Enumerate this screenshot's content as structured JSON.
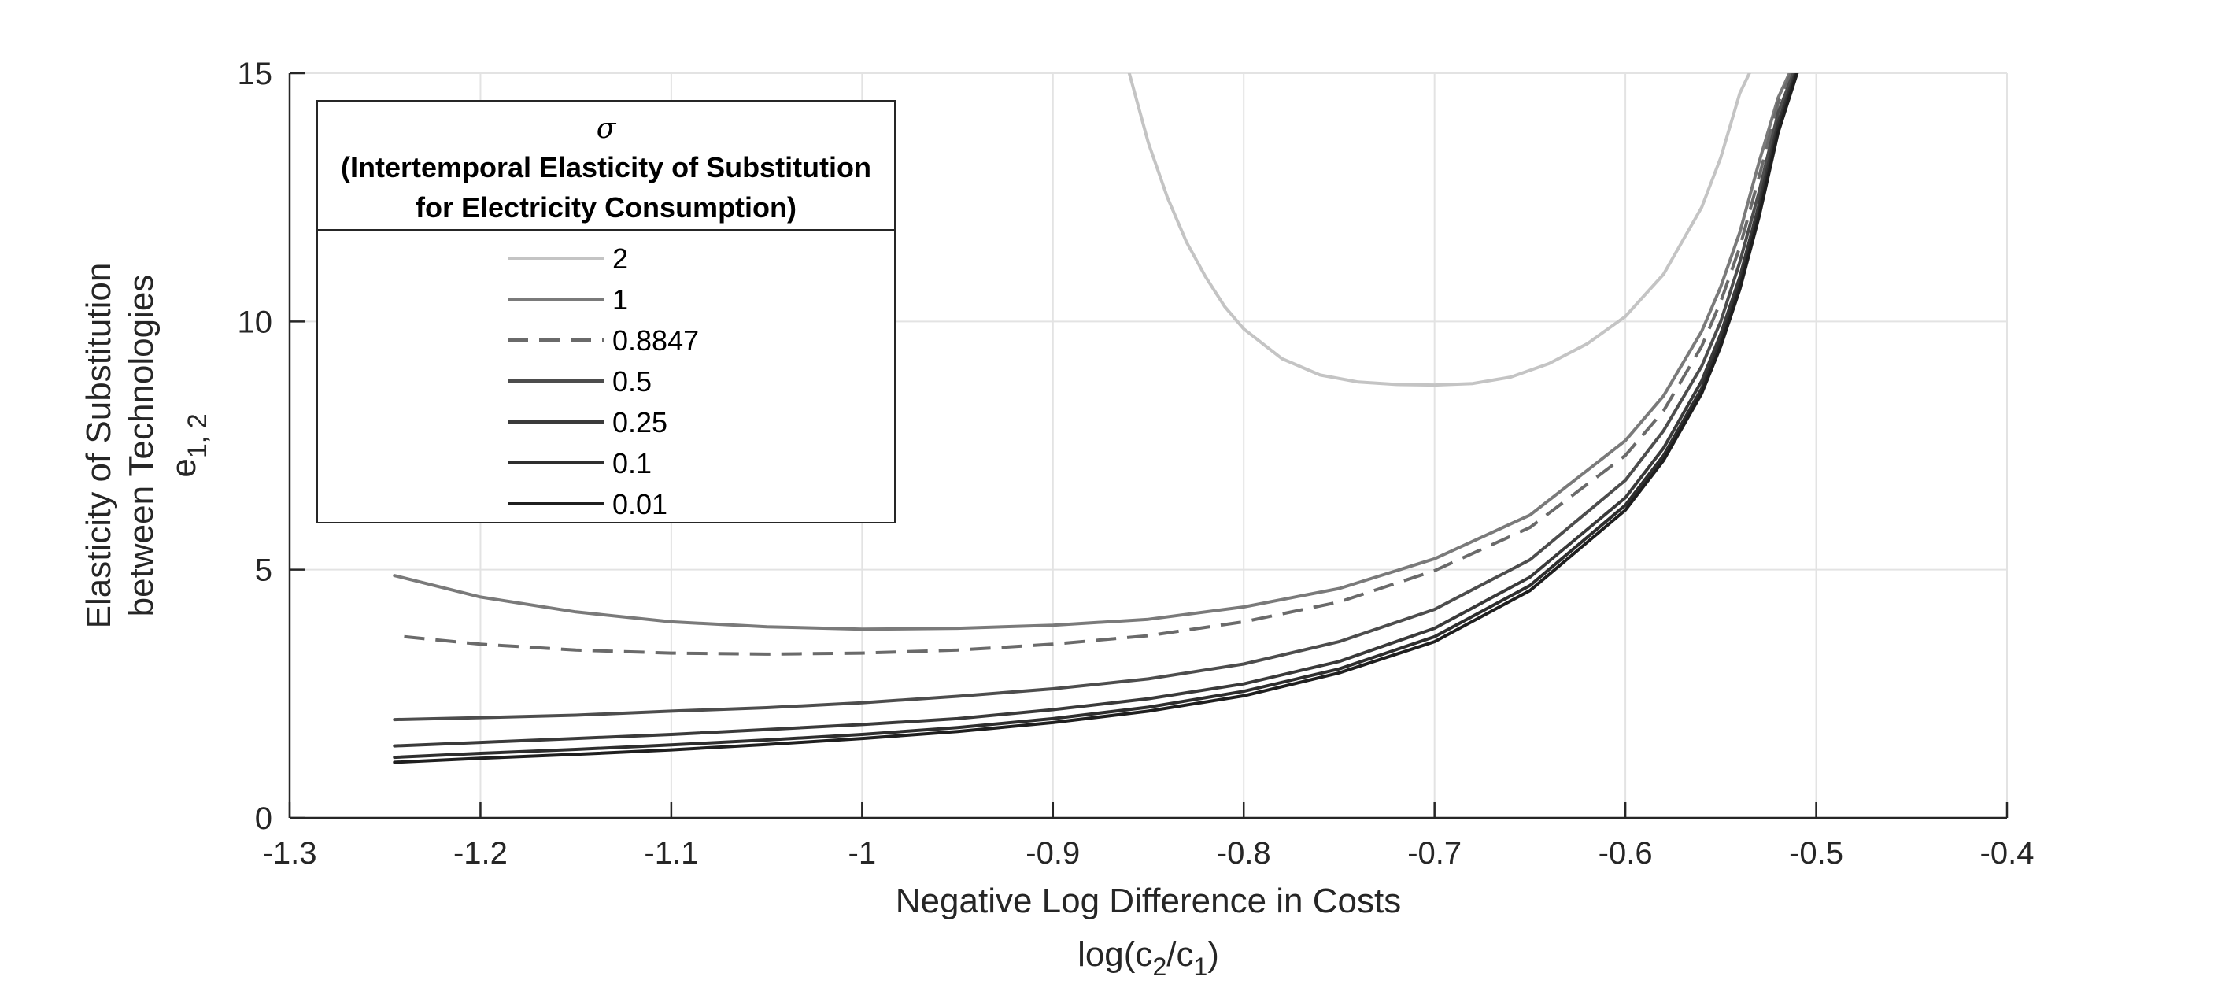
{
  "chart_data": {
    "type": "line",
    "xlabel": "Negative Log Difference in Costs",
    "xlabel_line2": "log(c_2/c_1)",
    "ylabel_line1": "Elasticity of Substitution",
    "ylabel_line2": "between Technologies",
    "ylabel_line3": "e_1, 2",
    "xlim": [
      -1.3,
      -0.4
    ],
    "ylim": [
      0,
      15
    ],
    "grid": true,
    "x_ticks": [
      -1.3,
      -1.2,
      -1.1,
      -1.0,
      -0.9,
      -0.8,
      -0.7,
      -0.6,
      -0.5,
      -0.4
    ],
    "x_tick_labels": [
      "-1.3",
      "-1.2",
      "-1.1",
      "-1",
      "-0.9",
      "-0.8",
      "-0.7",
      "-0.6",
      "-0.5",
      "-0.4"
    ],
    "y_ticks": [
      0,
      5,
      10,
      15
    ],
    "y_tick_labels": [
      "0",
      "5",
      "10",
      "15"
    ],
    "legend": {
      "placement": "top-left",
      "symbol": "σ",
      "title_line1": "(Intertemporal Elasticity of Substitution",
      "title_line2": "for Electricity Consumption)"
    },
    "series": [
      {
        "name": "2",
        "color": "#c4c4c4",
        "dash": "solid",
        "points": [
          [
            -0.86,
            15.0
          ],
          [
            -0.85,
            13.6
          ],
          [
            -0.84,
            12.5
          ],
          [
            -0.83,
            11.6
          ],
          [
            -0.82,
            10.9
          ],
          [
            -0.81,
            10.3
          ],
          [
            -0.8,
            9.85
          ],
          [
            -0.78,
            9.25
          ],
          [
            -0.76,
            8.92
          ],
          [
            -0.74,
            8.78
          ],
          [
            -0.72,
            8.73
          ],
          [
            -0.7,
            8.72
          ],
          [
            -0.68,
            8.75
          ],
          [
            -0.66,
            8.88
          ],
          [
            -0.64,
            9.15
          ],
          [
            -0.62,
            9.55
          ],
          [
            -0.6,
            10.1
          ],
          [
            -0.58,
            10.95
          ],
          [
            -0.56,
            12.3
          ],
          [
            -0.55,
            13.3
          ],
          [
            -0.54,
            14.6
          ],
          [
            -0.535,
            15.0
          ]
        ]
      },
      {
        "name": "1",
        "color": "#7a7a7a",
        "dash": "solid",
        "points": [
          [
            -1.245,
            4.88
          ],
          [
            -1.2,
            4.45
          ],
          [
            -1.15,
            4.15
          ],
          [
            -1.1,
            3.95
          ],
          [
            -1.05,
            3.85
          ],
          [
            -1.0,
            3.8
          ],
          [
            -0.95,
            3.82
          ],
          [
            -0.9,
            3.88
          ],
          [
            -0.85,
            4.0
          ],
          [
            -0.8,
            4.25
          ],
          [
            -0.75,
            4.62
          ],
          [
            -0.7,
            5.22
          ],
          [
            -0.65,
            6.1
          ],
          [
            -0.6,
            7.6
          ],
          [
            -0.58,
            8.5
          ],
          [
            -0.56,
            9.8
          ],
          [
            -0.55,
            10.7
          ],
          [
            -0.54,
            11.8
          ],
          [
            -0.53,
            13.2
          ],
          [
            -0.52,
            14.5
          ],
          [
            -0.514,
            15.0
          ]
        ]
      },
      {
        "name": "0.8847",
        "color": "#6a6a6a",
        "dash": "dashed",
        "points": [
          [
            -1.24,
            3.65
          ],
          [
            -1.2,
            3.5
          ],
          [
            -1.15,
            3.38
          ],
          [
            -1.1,
            3.32
          ],
          [
            -1.05,
            3.3
          ],
          [
            -1.0,
            3.32
          ],
          [
            -0.95,
            3.38
          ],
          [
            -0.9,
            3.5
          ],
          [
            -0.85,
            3.67
          ],
          [
            -0.8,
            3.95
          ],
          [
            -0.75,
            4.35
          ],
          [
            -0.7,
            4.98
          ],
          [
            -0.65,
            5.85
          ],
          [
            -0.6,
            7.3
          ],
          [
            -0.58,
            8.2
          ],
          [
            -0.56,
            9.5
          ],
          [
            -0.55,
            10.4
          ],
          [
            -0.54,
            11.5
          ],
          [
            -0.53,
            12.9
          ],
          [
            -0.52,
            14.4
          ],
          [
            -0.513,
            15.0
          ]
        ]
      },
      {
        "name": "0.5",
        "color": "#4d4d4d",
        "dash": "solid",
        "points": [
          [
            -1.245,
            1.98
          ],
          [
            -1.2,
            2.02
          ],
          [
            -1.15,
            2.07
          ],
          [
            -1.1,
            2.15
          ],
          [
            -1.05,
            2.22
          ],
          [
            -1.0,
            2.32
          ],
          [
            -0.95,
            2.45
          ],
          [
            -0.9,
            2.6
          ],
          [
            -0.85,
            2.8
          ],
          [
            -0.8,
            3.1
          ],
          [
            -0.75,
            3.55
          ],
          [
            -0.7,
            4.2
          ],
          [
            -0.65,
            5.2
          ],
          [
            -0.6,
            6.8
          ],
          [
            -0.58,
            7.8
          ],
          [
            -0.56,
            9.1
          ],
          [
            -0.55,
            10.0
          ],
          [
            -0.54,
            11.2
          ],
          [
            -0.53,
            12.6
          ],
          [
            -0.52,
            14.2
          ],
          [
            -0.512,
            15.0
          ]
        ]
      },
      {
        "name": "0.25",
        "color": "#3a3a3a",
        "dash": "solid",
        "points": [
          [
            -1.245,
            1.45
          ],
          [
            -1.2,
            1.52
          ],
          [
            -1.15,
            1.6
          ],
          [
            -1.1,
            1.68
          ],
          [
            -1.05,
            1.78
          ],
          [
            -1.0,
            1.88
          ],
          [
            -0.95,
            2.0
          ],
          [
            -0.9,
            2.18
          ],
          [
            -0.85,
            2.4
          ],
          [
            -0.8,
            2.7
          ],
          [
            -0.75,
            3.15
          ],
          [
            -0.7,
            3.82
          ],
          [
            -0.65,
            4.85
          ],
          [
            -0.6,
            6.45
          ],
          [
            -0.58,
            7.45
          ],
          [
            -0.56,
            8.8
          ],
          [
            -0.55,
            9.75
          ],
          [
            -0.54,
            10.9
          ],
          [
            -0.53,
            12.35
          ],
          [
            -0.52,
            14.0
          ],
          [
            -0.511,
            15.0
          ]
        ]
      },
      {
        "name": "0.1",
        "color": "#2e2e2e",
        "dash": "solid",
        "points": [
          [
            -1.245,
            1.22
          ],
          [
            -1.2,
            1.3
          ],
          [
            -1.15,
            1.38
          ],
          [
            -1.1,
            1.47
          ],
          [
            -1.05,
            1.57
          ],
          [
            -1.0,
            1.68
          ],
          [
            -0.95,
            1.82
          ],
          [
            -0.9,
            2.0
          ],
          [
            -0.85,
            2.23
          ],
          [
            -0.8,
            2.55
          ],
          [
            -0.75,
            3.0
          ],
          [
            -0.7,
            3.65
          ],
          [
            -0.65,
            4.68
          ],
          [
            -0.6,
            6.3
          ],
          [
            -0.58,
            7.3
          ],
          [
            -0.56,
            8.65
          ],
          [
            -0.55,
            9.6
          ],
          [
            -0.54,
            10.75
          ],
          [
            -0.53,
            12.2
          ],
          [
            -0.52,
            13.9
          ],
          [
            -0.5105,
            15.0
          ]
        ]
      },
      {
        "name": "0.01",
        "color": "#1f1f1f",
        "dash": "solid",
        "points": [
          [
            -1.245,
            1.12
          ],
          [
            -1.2,
            1.2
          ],
          [
            -1.15,
            1.28
          ],
          [
            -1.1,
            1.37
          ],
          [
            -1.05,
            1.48
          ],
          [
            -1.0,
            1.6
          ],
          [
            -0.95,
            1.74
          ],
          [
            -0.9,
            1.92
          ],
          [
            -0.85,
            2.15
          ],
          [
            -0.8,
            2.46
          ],
          [
            -0.75,
            2.92
          ],
          [
            -0.7,
            3.55
          ],
          [
            -0.65,
            4.58
          ],
          [
            -0.6,
            6.2
          ],
          [
            -0.58,
            7.2
          ],
          [
            -0.56,
            8.55
          ],
          [
            -0.55,
            9.5
          ],
          [
            -0.54,
            10.65
          ],
          [
            -0.53,
            12.1
          ],
          [
            -0.52,
            13.8
          ],
          [
            -0.51,
            15.0
          ]
        ]
      }
    ]
  }
}
